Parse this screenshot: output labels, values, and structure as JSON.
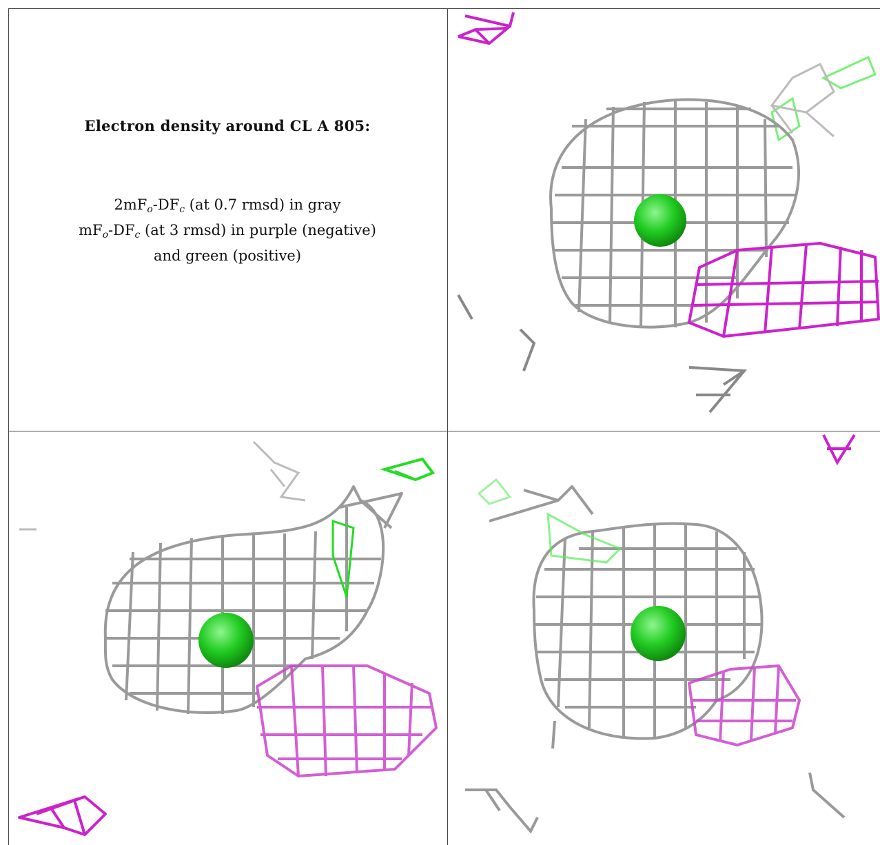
{
  "caption": {
    "title": "Electron density around CL A 805:",
    "line1": {
      "pre": "2mF",
      "sub1": "o",
      "mid": "-DF",
      "sub2": "c",
      "post": " (at 0.7 rmsd) in gray"
    },
    "line2": {
      "pre": "mF",
      "sub1": "o",
      "mid": "-DF",
      "sub2": "c",
      "post": " (at 3 rmsd) in purple (negative)"
    },
    "line3": "and green (positive)"
  },
  "colors": {
    "gray_mesh": "#9a9a9a",
    "negative_mesh": "#cc22cc",
    "positive_mesh": "#33dd33",
    "atom": "#22cc22",
    "border": "#444444"
  },
  "views": [
    {
      "name": "view-top-right"
    },
    {
      "name": "view-bottom-left"
    },
    {
      "name": "view-bottom-right"
    }
  ]
}
